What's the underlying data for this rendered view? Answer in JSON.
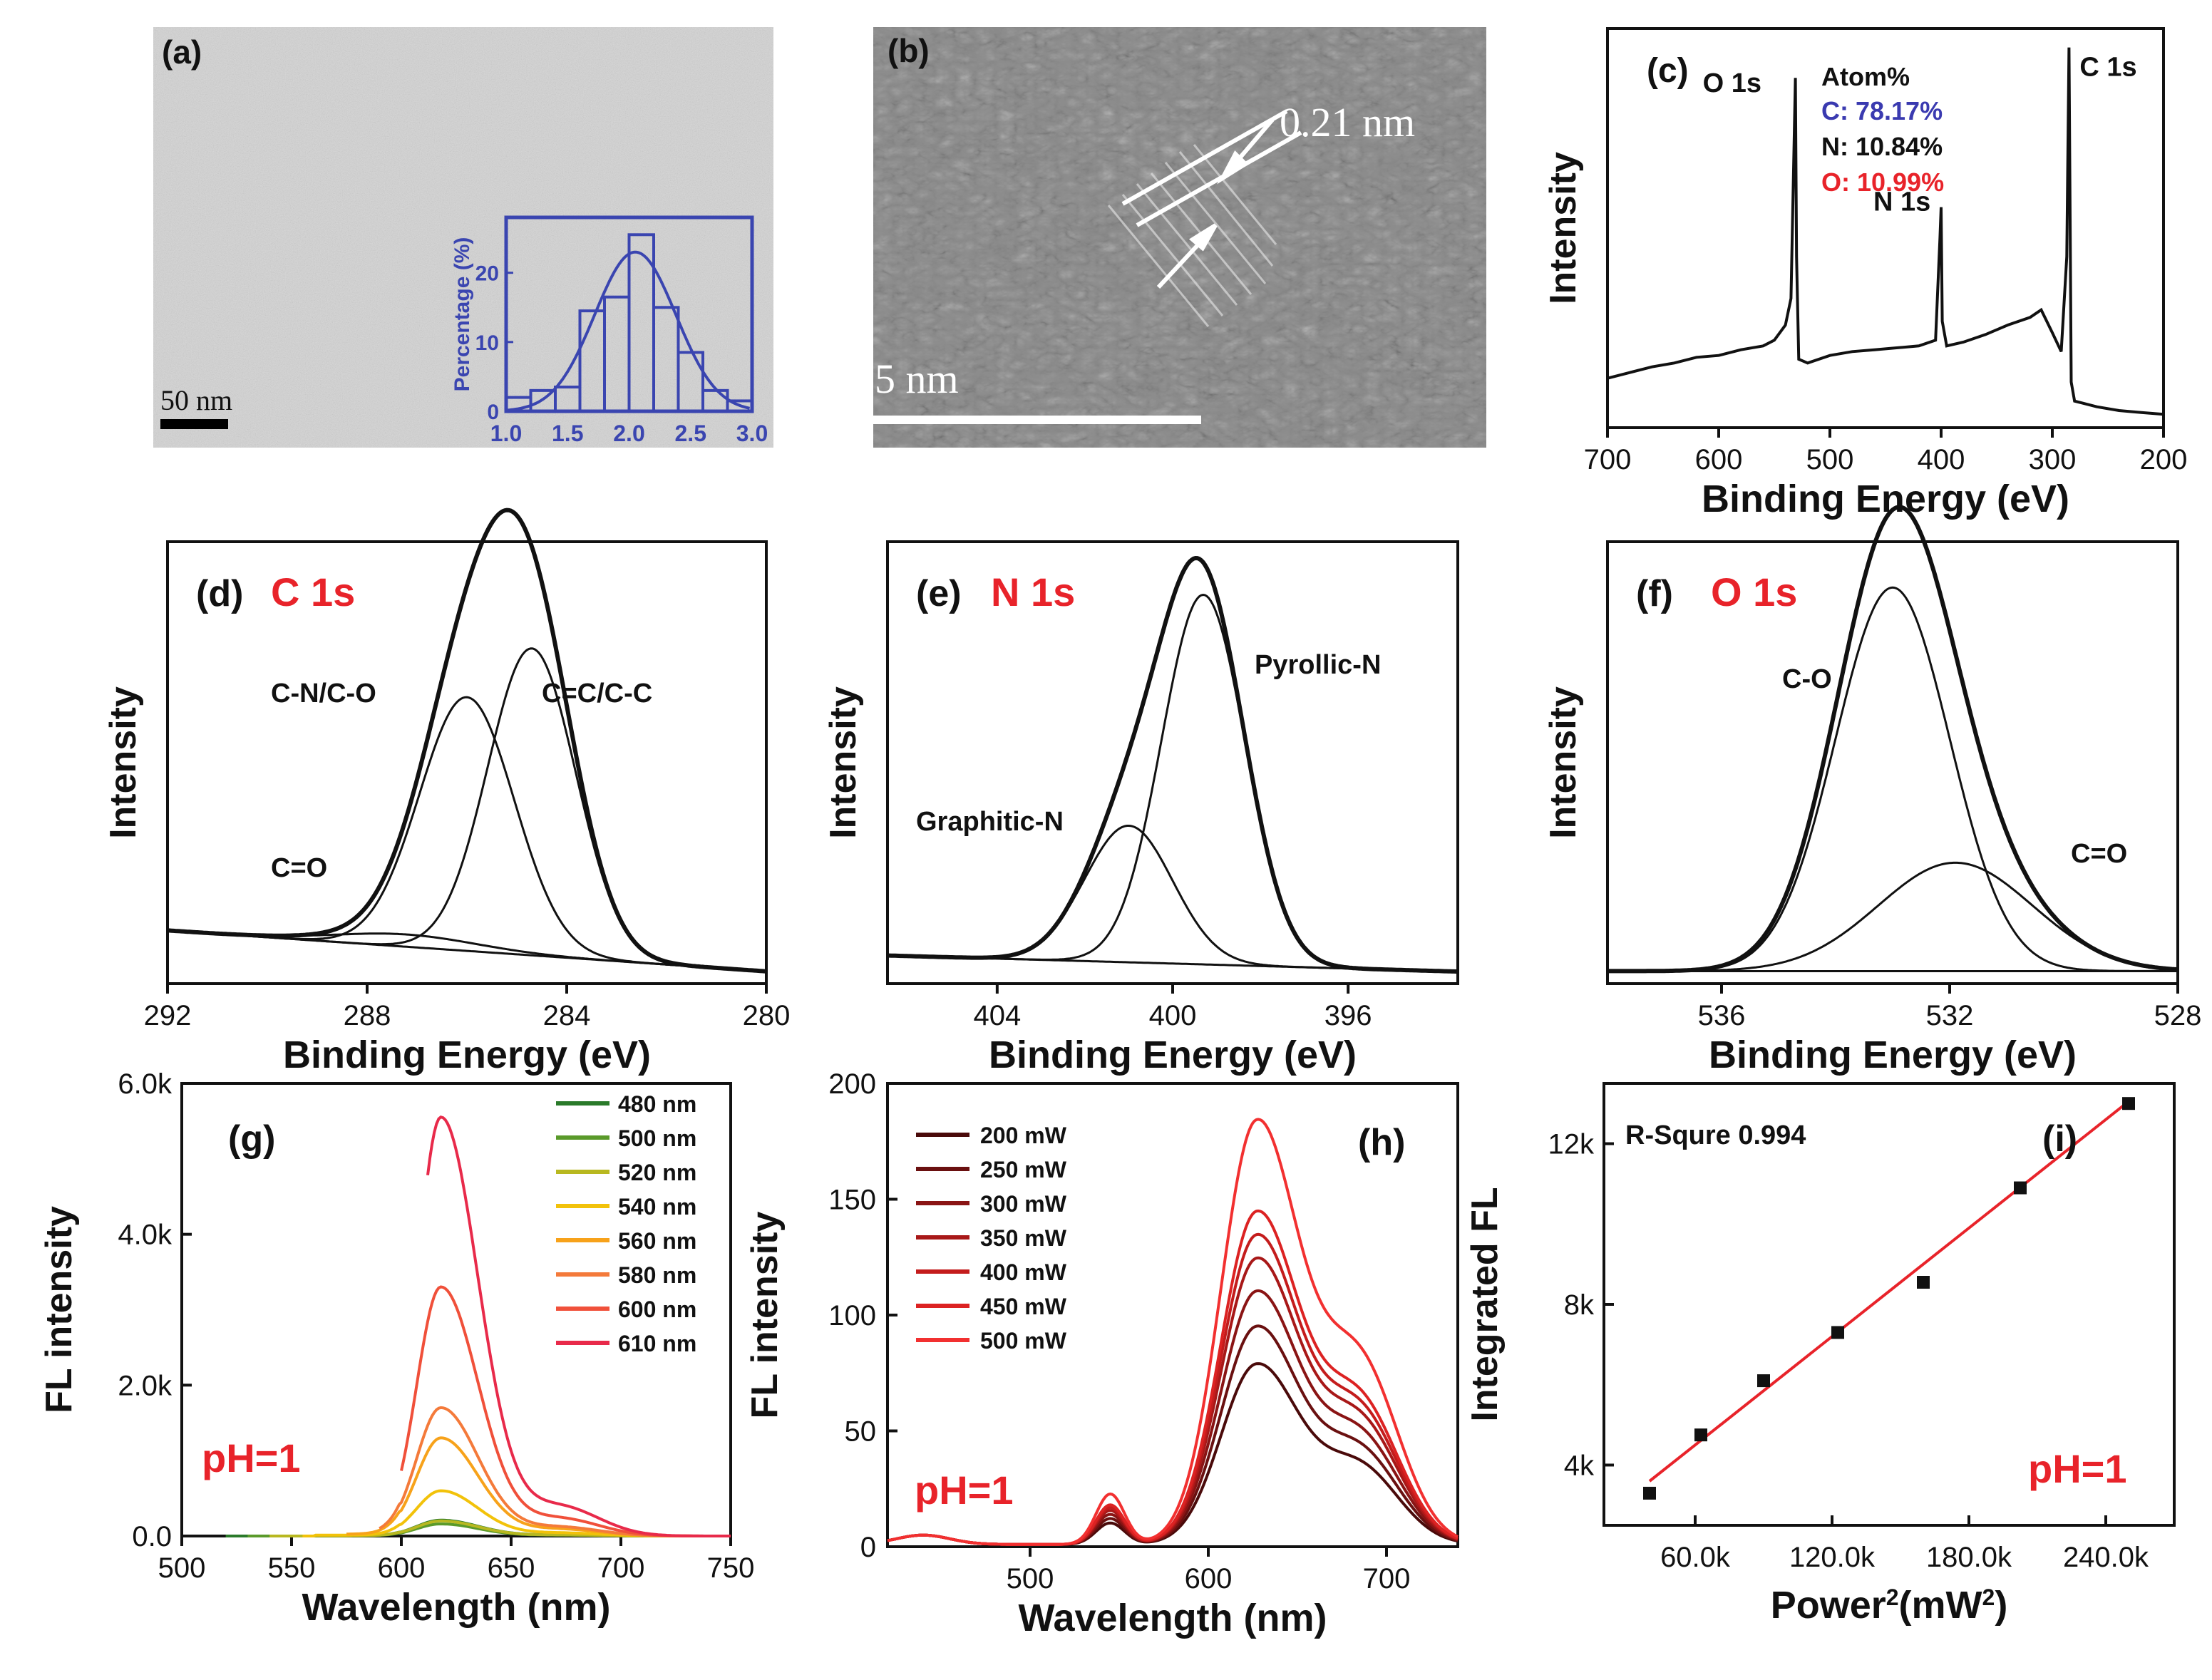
{
  "figure": {
    "panel_a": {
      "label": "(a)",
      "scale_bar": "50 nm",
      "inset": {
        "ylabel": "Percentage (%)",
        "x_ticks": [
          "1.0",
          "1.5",
          "2.0",
          "2.5",
          "3.0"
        ],
        "y_ticks": [
          "0",
          "10",
          "20"
        ]
      }
    },
    "panel_b": {
      "label": "(b)",
      "lattice_spacing": "0.21 nm",
      "scale_bar": "5 nm"
    },
    "colors": {
      "axis": "#111111",
      "highlight_red": "#e8232a",
      "inset_blue": "#3a45b0",
      "fit_red": "#e8232a"
    }
  },
  "chart_data": [
    {
      "id": "a-inset",
      "type": "bar",
      "xlabel": "",
      "ylabel": "Percentage (%)",
      "xlim": [
        1.0,
        3.0
      ],
      "ylim": [
        0,
        28
      ],
      "bins": [
        {
          "x0": 1.0,
          "x1": 1.2,
          "value": 2.0
        },
        {
          "x0": 1.2,
          "x1": 1.4,
          "value": 3.0
        },
        {
          "x0": 1.4,
          "x1": 1.6,
          "value": 3.5
        },
        {
          "x0": 1.6,
          "x1": 1.8,
          "value": 14.5
        },
        {
          "x0": 1.8,
          "x1": 2.0,
          "value": 16.5
        },
        {
          "x0": 2.0,
          "x1": 2.2,
          "value": 25.5
        },
        {
          "x0": 2.2,
          "x1": 2.4,
          "value": 15.0
        },
        {
          "x0": 2.4,
          "x1": 2.6,
          "value": 8.5
        },
        {
          "x0": 2.6,
          "x1": 2.8,
          "value": 3.0
        },
        {
          "x0": 2.8,
          "x1": 3.0,
          "value": 1.5
        }
      ],
      "fit": {
        "shape": "gaussian",
        "center": 2.05,
        "sigma": 0.33,
        "amplitude": 23
      }
    },
    {
      "id": "c",
      "type": "line",
      "label": "(c)",
      "xlabel": "Binding Energy (eV)",
      "ylabel": "Intensity",
      "xlim": [
        700,
        200
      ],
      "x_ticks": [
        "700",
        "600",
        "500",
        "400",
        "300",
        "200"
      ],
      "peaks": [
        {
          "label": "O 1s",
          "position": 531
        },
        {
          "label": "N 1s",
          "position": 400
        },
        {
          "label": "C 1s",
          "position": 285
        }
      ],
      "composition": {
        "title": "Atom%",
        "items": [
          {
            "label": "C: 78.17%",
            "color": "#3a3ab0"
          },
          {
            "label": "N: 10.84%",
            "color": "#111111"
          },
          {
            "label": "O: 10.99%",
            "color": "#e8232a"
          }
        ]
      },
      "series": [
        {
          "x": [
            700,
            680,
            660,
            640,
            620,
            600,
            580,
            560,
            550,
            540,
            535,
            532,
            531,
            530,
            528,
            520,
            500,
            480,
            460,
            440,
            420,
            405,
            401,
            400,
            399,
            395,
            380,
            360,
            340,
            320,
            310,
            300,
            292,
            287,
            285,
            283,
            280,
            260,
            240,
            220,
            200
          ],
          "y": [
            0.13,
            0.145,
            0.16,
            0.17,
            0.185,
            0.19,
            0.205,
            0.215,
            0.23,
            0.27,
            0.34,
            0.78,
            0.92,
            0.45,
            0.18,
            0.17,
            0.19,
            0.2,
            0.205,
            0.21,
            0.215,
            0.23,
            0.5,
            0.58,
            0.28,
            0.215,
            0.225,
            0.245,
            0.27,
            0.29,
            0.31,
            0.25,
            0.2,
            0.45,
            1.0,
            0.12,
            0.07,
            0.055,
            0.045,
            0.04,
            0.035
          ]
        }
      ]
    },
    {
      "id": "d",
      "type": "line",
      "label": "(d)",
      "element": "C 1s",
      "xlabel": "Binding Energy (eV)",
      "ylabel": "Intensity",
      "xlim": [
        292,
        280
      ],
      "x_ticks": [
        "292",
        "288",
        "284",
        "280"
      ],
      "ylim": [
        0,
        1.08
      ],
      "components": [
        {
          "label": "C=O",
          "center": 287.2,
          "sigma": 1.4,
          "amplitude": 0.03
        },
        {
          "label": "C-N/C-O",
          "center": 286.0,
          "sigma": 0.95,
          "amplitude": 0.62
        },
        {
          "label": "C=C/C-C",
          "center": 284.7,
          "sigma": 0.88,
          "amplitude": 0.75
        }
      ],
      "background": {
        "left": 0.1,
        "right": 0.0
      }
    },
    {
      "id": "e",
      "type": "line",
      "label": "(e)",
      "element": "N 1s",
      "xlabel": "Binding Energy (eV)",
      "ylabel": "Intensity",
      "xlim": [
        406.5,
        393.5
      ],
      "x_ticks": [
        "404",
        "400",
        "396"
      ],
      "ylim": [
        0,
        1.1
      ],
      "components": [
        {
          "label": "Graphitic-N",
          "center": 401.0,
          "sigma": 1.0,
          "amplitude": 0.34
        },
        {
          "label": "Pyrollic-N",
          "center": 399.3,
          "sigma": 0.95,
          "amplitude": 0.92
        }
      ],
      "background": {
        "left": 0.04,
        "right": 0.0
      }
    },
    {
      "id": "f",
      "type": "line",
      "label": "(f)",
      "element": "O 1s",
      "xlabel": "Binding Energy (eV)",
      "ylabel": "Intensity",
      "xlim": [
        538,
        528
      ],
      "x_ticks": [
        "536",
        "532",
        "528"
      ],
      "ylim": [
        0,
        1.06
      ],
      "components": [
        {
          "label": "C-O",
          "center": 533.0,
          "sigma": 1.0,
          "amplitude": 0.92
        },
        {
          "label": "C=O",
          "center": 531.9,
          "sigma": 1.35,
          "amplitude": 0.26
        }
      ],
      "background": {
        "left": 0.0,
        "right": 0.0
      }
    },
    {
      "id": "g",
      "type": "line",
      "label": "(g)",
      "annotation": "pH=1",
      "xlabel": "Wavelength (nm)",
      "ylabel": "FL intensity",
      "xlim": [
        500,
        750
      ],
      "ylim": [
        0,
        6000
      ],
      "x_ticks": [
        "500",
        "550",
        "600",
        "650",
        "700",
        "750"
      ],
      "y_ticks": [
        "0.0",
        "2.0k",
        "4.0k",
        "6.0k"
      ],
      "series": [
        {
          "name": "480 nm",
          "color": "#2a7a2a",
          "peak": 210,
          "start": 520
        },
        {
          "name": "500 nm",
          "color": "#5a9a2a",
          "peak": 160,
          "start": 530
        },
        {
          "name": "520 nm",
          "color": "#b8b820",
          "peak": 200,
          "start": 540
        },
        {
          "name": "540 nm",
          "color": "#f2c20a",
          "peak": 600,
          "start": 555
        },
        {
          "name": "560 nm",
          "color": "#f7a21a",
          "peak": 1300,
          "start": 575
        },
        {
          "name": "580 nm",
          "color": "#f47a3a",
          "peak": 1700,
          "start": 590
        },
        {
          "name": "600 nm",
          "color": "#f0503a",
          "peak": 3300,
          "start": 600
        },
        {
          "name": "610 nm",
          "color": "#e82a4a",
          "peak": 5550,
          "start": 612
        }
      ],
      "peak_position": 618
    },
    {
      "id": "h",
      "type": "line",
      "label": "(h)",
      "annotation": "pH=1",
      "xlabel": "Wavelength (nm)",
      "ylabel": "FL intensity",
      "xlim": [
        420,
        740
      ],
      "ylim": [
        0,
        200
      ],
      "x_ticks": [
        "500",
        "600",
        "700"
      ],
      "y_ticks": [
        "0",
        "50",
        "100",
        "150",
        "200"
      ],
      "series": [
        {
          "name": "200 mW",
          "color": "#4a0a0a",
          "peak": 77
        },
        {
          "name": "250 mW",
          "color": "#6a1010",
          "peak": 93
        },
        {
          "name": "300 mW",
          "color": "#8a1414",
          "peak": 108
        },
        {
          "name": "350 mW",
          "color": "#a81818",
          "peak": 122
        },
        {
          "name": "400 mW",
          "color": "#c41c1c",
          "peak": 132
        },
        {
          "name": "450 mW",
          "color": "#dc2222",
          "peak": 142
        },
        {
          "name": "500 mW",
          "color": "#f23030",
          "peak": 181
        }
      ],
      "peak_position": 627
    },
    {
      "id": "i",
      "type": "scatter",
      "label": "(i)",
      "annotation": "R-Squre 0.994",
      "annotation2": "pH=1",
      "xlabel": "Power",
      "xlabel_sup": "2",
      "xlabel_unit": "(mW",
      "xlabel_unit_sup": "2",
      "xlabel_close": ")",
      "ylabel": "Integrated FL",
      "xlim": [
        20000,
        270000
      ],
      "ylim": [
        2500,
        13500
      ],
      "x_ticks": [
        {
          "value": 60000,
          "label": "60.0k"
        },
        {
          "value": 120000,
          "label": "120.0k"
        },
        {
          "value": 180000,
          "label": "180.0k"
        },
        {
          "value": 240000,
          "label": "240.0k"
        }
      ],
      "y_ticks": [
        {
          "value": 4000,
          "label": "4k"
        },
        {
          "value": 8000,
          "label": "8k"
        },
        {
          "value": 12000,
          "label": "12k"
        }
      ],
      "points": [
        {
          "x": 40000,
          "y": 3300
        },
        {
          "x": 62500,
          "y": 4750
        },
        {
          "x": 90000,
          "y": 6100
        },
        {
          "x": 122500,
          "y": 7300
        },
        {
          "x": 160000,
          "y": 8550
        },
        {
          "x": 202500,
          "y": 10900
        },
        {
          "x": 250000,
          "y": 13000
        }
      ],
      "fit_line": {
        "x": [
          40000,
          250000
        ],
        "y": [
          3600,
          13050
        ]
      }
    }
  ]
}
